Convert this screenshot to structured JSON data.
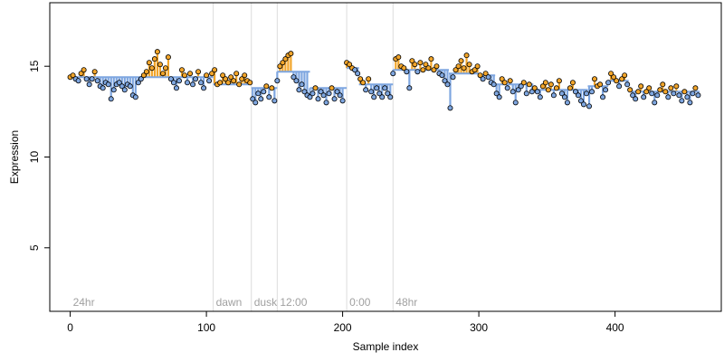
{
  "chart_data": {
    "type": "scatter",
    "title": "",
    "xlabel": "Sample index",
    "ylabel": "Expression",
    "xlim": [
      -15,
      478
    ],
    "ylim": [
      1.5,
      18.5
    ],
    "xticks": [
      0,
      100,
      200,
      300,
      400
    ],
    "yticks": [
      5,
      10,
      15
    ],
    "grid": false,
    "colors": {
      "above_fit": "#f2a52a",
      "below_fit": "#7ea6e0",
      "point_stroke": "#000000",
      "phase_line": "#dcdcdc",
      "phase_text": "#a0a0a0"
    },
    "phase_labels": [
      {
        "x": 0,
        "label": "24hr"
      },
      {
        "x": 105,
        "label": "dawn"
      },
      {
        "x": 133,
        "label": "dusk"
      },
      {
        "x": 152,
        "label": "12:00"
      },
      {
        "x": 203,
        "label": "0:00"
      },
      {
        "x": 237,
        "label": "48hr"
      }
    ],
    "segments": [
      {
        "x0": 0,
        "x1": 105,
        "fit": 14.4
      },
      {
        "x0": 105,
        "x1": 133,
        "fit": 14.0
      },
      {
        "x0": 133,
        "x1": 152,
        "fit": 13.8
      },
      {
        "x0": 152,
        "x1": 176,
        "fit": 14.7
      },
      {
        "x0": 176,
        "x1": 203,
        "fit": 13.8
      },
      {
        "x0": 203,
        "x1": 212,
        "fit": 14.9
      },
      {
        "x0": 212,
        "x1": 237,
        "fit": 14.0
      },
      {
        "x0": 237,
        "x1": 255,
        "fit": 14.8
      },
      {
        "x0": 255,
        "x1": 278,
        "fit": 14.8
      },
      {
        "x0": 278,
        "x1": 300,
        "fit": 14.6
      },
      {
        "x0": 300,
        "x1": 312,
        "fit": 14.5
      },
      {
        "x0": 312,
        "x1": 340,
        "fit": 14.0
      },
      {
        "x0": 340,
        "x1": 380,
        "fit": 13.7
      },
      {
        "x0": 380,
        "x1": 395,
        "fit": 13.9
      },
      {
        "x0": 395,
        "x1": 410,
        "fit": 14.2
      },
      {
        "x0": 410,
        "x1": 462,
        "fit": 13.6
      }
    ],
    "points": [
      [
        0,
        14.4
      ],
      [
        2,
        14.5
      ],
      [
        4,
        14.3
      ],
      [
        6,
        14.2
      ],
      [
        8,
        14.6
      ],
      [
        10,
        14.8
      ],
      [
        12,
        14.3
      ],
      [
        14,
        14.0
      ],
      [
        16,
        14.3
      ],
      [
        18,
        14.7
      ],
      [
        20,
        14.2
      ],
      [
        22,
        13.9
      ],
      [
        24,
        13.8
      ],
      [
        26,
        14.1
      ],
      [
        28,
        14.0
      ],
      [
        30,
        13.2
      ],
      [
        32,
        13.7
      ],
      [
        34,
        14.0
      ],
      [
        36,
        14.1
      ],
      [
        38,
        13.9
      ],
      [
        40,
        13.7
      ],
      [
        42,
        14.0
      ],
      [
        44,
        13.9
      ],
      [
        46,
        13.4
      ],
      [
        48,
        13.3
      ],
      [
        50,
        14.1
      ],
      [
        52,
        14.3
      ],
      [
        54,
        14.5
      ],
      [
        56,
        14.7
      ],
      [
        58,
        15.2
      ],
      [
        60,
        14.9
      ],
      [
        62,
        15.4
      ],
      [
        64,
        15.8
      ],
      [
        66,
        15.1
      ],
      [
        68,
        14.6
      ],
      [
        70,
        14.9
      ],
      [
        72,
        15.5
      ],
      [
        74,
        14.3
      ],
      [
        76,
        14.1
      ],
      [
        78,
        13.8
      ],
      [
        80,
        14.2
      ],
      [
        82,
        14.8
      ],
      [
        84,
        14.5
      ],
      [
        86,
        14.1
      ],
      [
        88,
        14.6
      ],
      [
        90,
        14.0
      ],
      [
        92,
        14.3
      ],
      [
        94,
        14.7
      ],
      [
        96,
        14.1
      ],
      [
        98,
        13.8
      ],
      [
        100,
        14.5
      ],
      [
        102,
        14.2
      ],
      [
        104,
        14.6
      ],
      [
        106,
        14.8
      ],
      [
        108,
        14.0
      ],
      [
        110,
        14.1
      ],
      [
        112,
        14.5
      ],
      [
        114,
        14.3
      ],
      [
        116,
        14.1
      ],
      [
        118,
        14.4
      ],
      [
        120,
        14.2
      ],
      [
        122,
        14.6
      ],
      [
        124,
        14.0
      ],
      [
        126,
        14.3
      ],
      [
        128,
        14.5
      ],
      [
        130,
        14.2
      ],
      [
        132,
        14.1
      ],
      [
        134,
        13.2
      ],
      [
        136,
        13.0
      ],
      [
        138,
        13.5
      ],
      [
        140,
        13.2
      ],
      [
        142,
        13.6
      ],
      [
        144,
        13.9
      ],
      [
        146,
        13.3
      ],
      [
        148,
        13.8
      ],
      [
        150,
        13.1
      ],
      [
        152,
        14.2
      ],
      [
        154,
        15.0
      ],
      [
        156,
        15.2
      ],
      [
        158,
        15.4
      ],
      [
        160,
        15.6
      ],
      [
        162,
        15.7
      ],
      [
        164,
        14.4
      ],
      [
        166,
        14.2
      ],
      [
        168,
        13.7
      ],
      [
        170,
        14.0
      ],
      [
        172,
        13.6
      ],
      [
        174,
        13.4
      ],
      [
        176,
        13.3
      ],
      [
        178,
        13.5
      ],
      [
        180,
        13.8
      ],
      [
        182,
        13.2
      ],
      [
        184,
        13.6
      ],
      [
        186,
        13.4
      ],
      [
        188,
        13.0
      ],
      [
        190,
        13.5
      ],
      [
        192,
        13.8
      ],
      [
        194,
        13.2
      ],
      [
        196,
        13.6
      ],
      [
        198,
        13.4
      ],
      [
        200,
        13.1
      ],
      [
        203,
        15.2
      ],
      [
        205,
        15.1
      ],
      [
        207,
        14.9
      ],
      [
        209,
        14.8
      ],
      [
        211,
        14.6
      ],
      [
        213,
        14.3
      ],
      [
        215,
        14.1
      ],
      [
        217,
        13.7
      ],
      [
        219,
        14.3
      ],
      [
        221,
        13.6
      ],
      [
        223,
        13.3
      ],
      [
        225,
        13.8
      ],
      [
        227,
        13.5
      ],
      [
        229,
        13.3
      ],
      [
        231,
        13.8
      ],
      [
        233,
        13.5
      ],
      [
        235,
        13.3
      ],
      [
        237,
        14.6
      ],
      [
        239,
        15.4
      ],
      [
        241,
        15.5
      ],
      [
        243,
        15.0
      ],
      [
        245,
        14.9
      ],
      [
        247,
        14.7
      ],
      [
        249,
        13.8
      ],
      [
        251,
        15.3
      ],
      [
        253,
        15.1
      ],
      [
        255,
        14.7
      ],
      [
        257,
        15.2
      ],
      [
        259,
        14.8
      ],
      [
        261,
        15.1
      ],
      [
        263,
        14.9
      ],
      [
        265,
        15.4
      ],
      [
        267,
        14.8
      ],
      [
        269,
        15.0
      ],
      [
        271,
        14.6
      ],
      [
        273,
        14.5
      ],
      [
        275,
        14.2
      ],
      [
        277,
        14.0
      ],
      [
        279,
        12.7
      ],
      [
        281,
        14.4
      ],
      [
        283,
        14.8
      ],
      [
        285,
        15.0
      ],
      [
        287,
        15.3
      ],
      [
        289,
        14.9
      ],
      [
        291,
        15.6
      ],
      [
        293,
        15.1
      ],
      [
        295,
        14.7
      ],
      [
        297,
        14.8
      ],
      [
        299,
        15.0
      ],
      [
        301,
        14.5
      ],
      [
        303,
        14.3
      ],
      [
        305,
        14.6
      ],
      [
        307,
        14.4
      ],
      [
        309,
        14.1
      ],
      [
        311,
        14.0
      ],
      [
        313,
        13.5
      ],
      [
        315,
        13.3
      ],
      [
        317,
        14.3
      ],
      [
        319,
        14.1
      ],
      [
        321,
        13.8
      ],
      [
        323,
        14.2
      ],
      [
        325,
        13.6
      ],
      [
        327,
        13.0
      ],
      [
        329,
        13.7
      ],
      [
        331,
        13.9
      ],
      [
        333,
        14.1
      ],
      [
        335,
        13.5
      ],
      [
        337,
        14.0
      ],
      [
        339,
        13.6
      ],
      [
        341,
        13.8
      ],
      [
        343,
        13.6
      ],
      [
        345,
        13.3
      ],
      [
        347,
        13.9
      ],
      [
        349,
        14.1
      ],
      [
        351,
        13.7
      ],
      [
        353,
        14.0
      ],
      [
        355,
        13.4
      ],
      [
        357,
        13.8
      ],
      [
        359,
        14.2
      ],
      [
        361,
        13.5
      ],
      [
        363,
        13.3
      ],
      [
        365,
        13.0
      ],
      [
        367,
        13.8
      ],
      [
        369,
        14.1
      ],
      [
        371,
        13.6
      ],
      [
        373,
        13.4
      ],
      [
        375,
        13.1
      ],
      [
        377,
        12.9
      ],
      [
        379,
        13.5
      ],
      [
        381,
        12.8
      ],
      [
        383,
        13.6
      ],
      [
        385,
        14.3
      ],
      [
        387,
        13.9
      ],
      [
        389,
        14.0
      ],
      [
        391,
        13.3
      ],
      [
        393,
        13.7
      ],
      [
        395,
        14.1
      ],
      [
        397,
        14.6
      ],
      [
        399,
        14.4
      ],
      [
        401,
        14.2
      ],
      [
        403,
        13.9
      ],
      [
        405,
        14.3
      ],
      [
        407,
        14.5
      ],
      [
        409,
        14.0
      ],
      [
        411,
        13.7
      ],
      [
        413,
        13.4
      ],
      [
        415,
        13.2
      ],
      [
        417,
        13.6
      ],
      [
        419,
        13.9
      ],
      [
        421,
        13.3
      ],
      [
        423,
        13.6
      ],
      [
        425,
        13.8
      ],
      [
        427,
        13.5
      ],
      [
        429,
        13.0
      ],
      [
        431,
        13.4
      ],
      [
        433,
        13.7
      ],
      [
        435,
        14.0
      ],
      [
        437,
        13.6
      ],
      [
        439,
        13.3
      ],
      [
        441,
        13.8
      ],
      [
        443,
        13.5
      ],
      [
        445,
        13.9
      ],
      [
        447,
        13.4
      ],
      [
        449,
        13.1
      ],
      [
        451,
        13.6
      ],
      [
        453,
        13.3
      ],
      [
        455,
        13.0
      ],
      [
        457,
        13.5
      ],
      [
        459,
        13.8
      ],
      [
        461,
        13.4
      ]
    ]
  }
}
